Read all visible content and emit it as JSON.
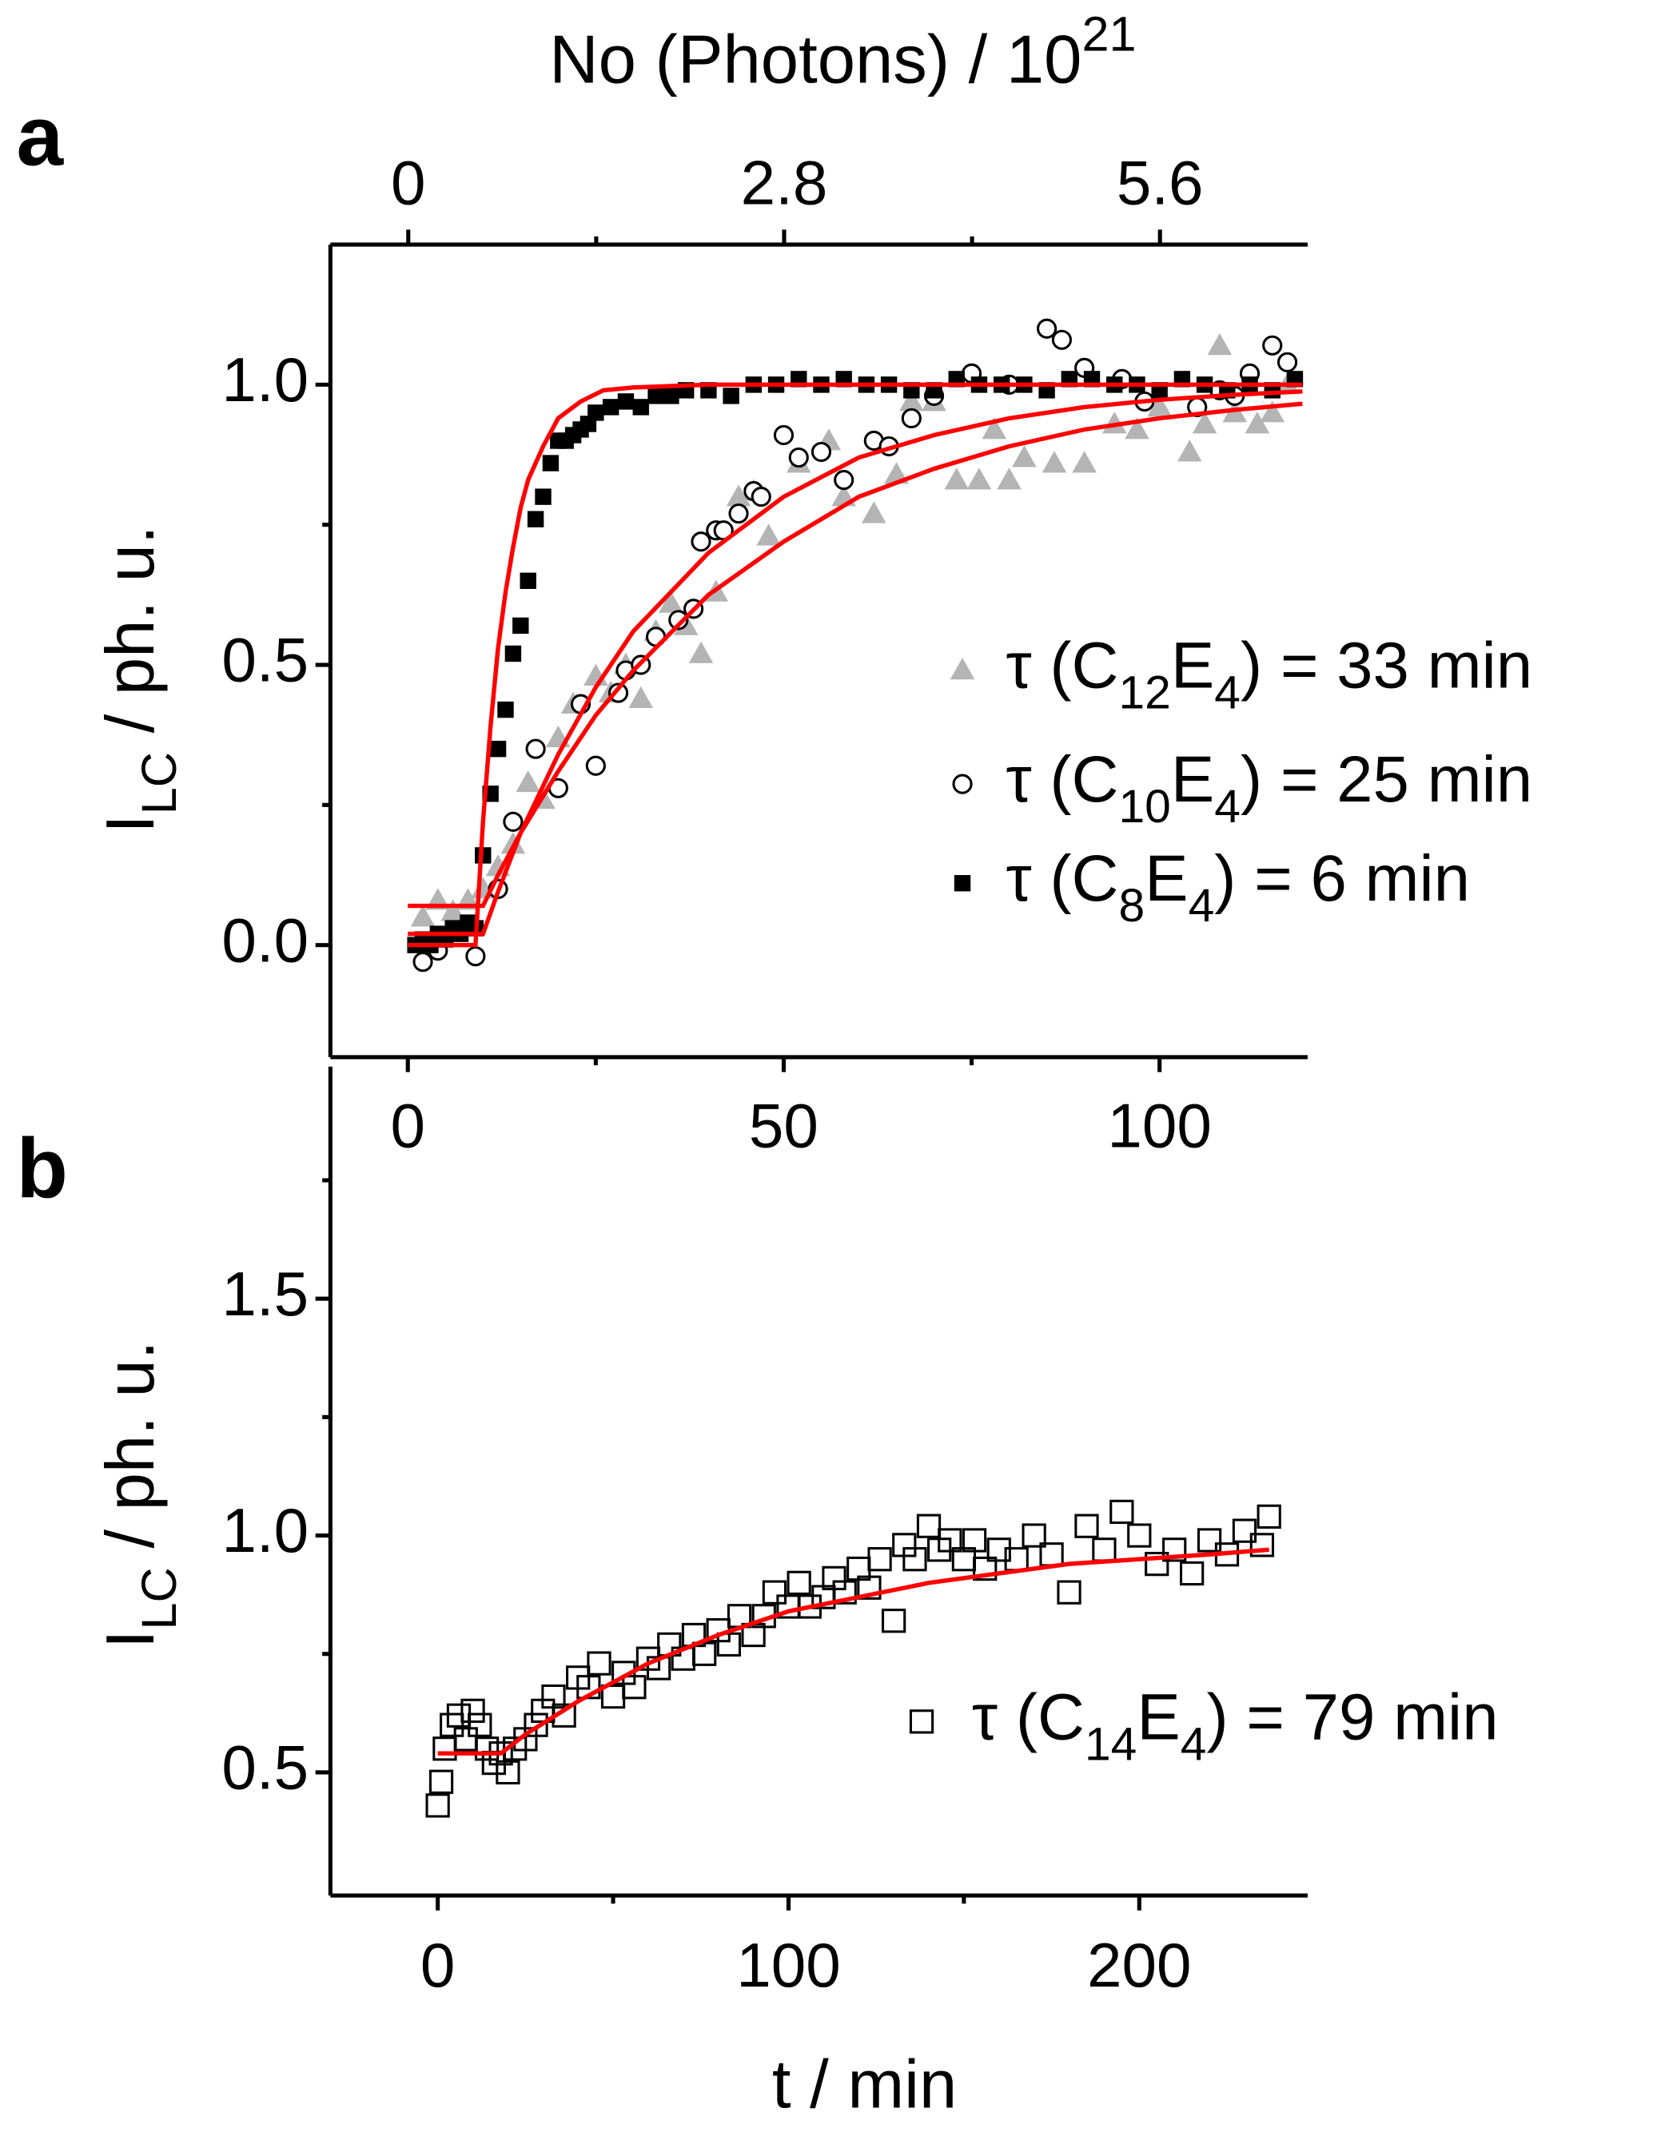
{
  "chart_data": [
    {
      "type": "scatter",
      "panel": "a",
      "ylabel": "ILC / ph. u.",
      "x2label": "No (Photons) / 1021",
      "xlim": [
        -10.3,
        119.7
      ],
      "xticks": [
        0,
        50,
        100
      ],
      "minor_xticks": [
        25,
        75
      ],
      "x2lim": [
        -0.58,
        6.7
      ],
      "x2ticks": [
        0,
        2.8,
        5.6
      ],
      "minor_x2ticks": [
        1.4,
        4.2
      ],
      "ylim": [
        -0.2,
        1.25
      ],
      "yticks": [
        {
          "value": 0,
          "label": "0.0"
        },
        {
          "value": 0.5,
          "label": "0.5"
        },
        {
          "value": 1,
          "label": "1.0"
        }
      ],
      "minor_yticks": [
        0.25,
        0.75
      ],
      "series": [
        {
          "name": "τ (C12E4) = 33 min",
          "color": "#b4b4b4",
          "marker": "triangle",
          "x": [
            2,
            4,
            6,
            8,
            10,
            12,
            14,
            16,
            18,
            20,
            22,
            25,
            27,
            29,
            31,
            33,
            35,
            37,
            39,
            41,
            44,
            46,
            48,
            52,
            56,
            58,
            62,
            65,
            67,
            70,
            73,
            76,
            78,
            80,
            82,
            86,
            90,
            94,
            97,
            100,
            104,
            106,
            108,
            110,
            113,
            115,
            117
          ],
          "values": [
            0.05,
            0.08,
            0.06,
            0.08,
            0.1,
            0.14,
            0.18,
            0.29,
            0.26,
            0.37,
            0.43,
            0.48,
            0.45,
            0.5,
            0.44,
            0.56,
            0.61,
            0.57,
            0.52,
            0.63,
            0.8,
            0.81,
            0.73,
            0.86,
            0.9,
            0.8,
            0.77,
            0.84,
            0.97,
            0.97,
            0.83,
            0.83,
            0.92,
            0.83,
            0.87,
            0.86,
            0.86,
            0.93,
            0.92,
            0.96,
            0.88,
            0.93,
            1.07,
            0.95,
            0.93,
            0.95,
            1.0
          ]
        },
        {
          "name": "τ (C10E4) = 25 min",
          "color": "#000000",
          "marker": "circle-open",
          "x": [
            2,
            4,
            9,
            12,
            14,
            17,
            20,
            23,
            25,
            28,
            29,
            31,
            33,
            36,
            38,
            39,
            41,
            42,
            44,
            46,
            47,
            50,
            52,
            55,
            58,
            62,
            64,
            67,
            70,
            75,
            80,
            85,
            87,
            90,
            95,
            98,
            105,
            108,
            110,
            112,
            115,
            117
          ],
          "values": [
            -0.03,
            -0.01,
            -0.02,
            0.1,
            0.22,
            0.35,
            0.28,
            0.43,
            0.32,
            0.45,
            0.49,
            0.5,
            0.55,
            0.58,
            0.6,
            0.72,
            0.74,
            0.74,
            0.77,
            0.81,
            0.8,
            0.91,
            0.87,
            0.88,
            0.83,
            0.9,
            0.89,
            0.94,
            0.98,
            1.02,
            1.0,
            1.1,
            1.08,
            1.03,
            1.01,
            0.97,
            0.96,
            0.99,
            0.98,
            1.02,
            1.07,
            1.04
          ]
        },
        {
          "name": "τ (C8E4) = 6 min",
          "color": "#000000",
          "marker": "square",
          "x": [
            1,
            2,
            3,
            4,
            5,
            6,
            7,
            8,
            9,
            10,
            11,
            12,
            13,
            14,
            15,
            16,
            17,
            18,
            19,
            20,
            21,
            22,
            23,
            24,
            25,
            27,
            29,
            31,
            33,
            35,
            37,
            40,
            43,
            46,
            49,
            52,
            55,
            58,
            61,
            64,
            67,
            70,
            73,
            76,
            79,
            82,
            85,
            88,
            91,
            94,
            97,
            100,
            103,
            106,
            109,
            112,
            115,
            118
          ],
          "values": [
            0.0,
            0.01,
            0.0,
            0.02,
            0.01,
            0.03,
            0.02,
            0.04,
            0.03,
            0.16,
            0.27,
            0.35,
            0.42,
            0.52,
            0.57,
            0.65,
            0.76,
            0.8,
            0.86,
            0.9,
            0.9,
            0.91,
            0.92,
            0.93,
            0.95,
            0.96,
            0.97,
            0.96,
            0.98,
            0.98,
            0.99,
            0.99,
            0.98,
            1.0,
            1.0,
            1.01,
            1.0,
            1.01,
            1.0,
            1.0,
            0.99,
            0.99,
            1.01,
            1.0,
            1.0,
            1.0,
            0.99,
            1.01,
            1.01,
            1.0,
            1.0,
            0.99,
            1.01,
            1.0,
            0.99,
            1.0,
            0.99,
            1.01
          ]
        }
      ],
      "fits": [
        {
          "color": "#ff0000",
          "x": [
            0,
            5,
            10,
            12,
            15,
            20,
            25,
            30,
            40,
            50,
            60,
            70,
            80,
            90,
            100,
            110,
            119
          ],
          "values": [
            0.07,
            0.07,
            0.07,
            0.125,
            0.2,
            0.31,
            0.41,
            0.49,
            0.625,
            0.72,
            0.8,
            0.85,
            0.89,
            0.92,
            0.94,
            0.955,
            0.966
          ]
        },
        {
          "color": "#ff0000",
          "x": [
            0,
            5,
            10,
            12,
            15,
            20,
            25,
            30,
            40,
            50,
            60,
            70,
            80,
            90,
            100,
            110,
            119
          ],
          "values": [
            0.02,
            0.02,
            0.02,
            0.095,
            0.2,
            0.34,
            0.46,
            0.56,
            0.7,
            0.8,
            0.87,
            0.91,
            0.94,
            0.96,
            0.973,
            0.982,
            0.988
          ]
        },
        {
          "color": "#ff0000",
          "x": [
            0,
            5,
            9,
            10,
            11,
            12,
            13,
            14,
            15,
            16,
            18,
            20,
            23,
            26,
            30,
            40,
            60,
            80,
            100,
            119
          ],
          "values": [
            0,
            0,
            0,
            0.22,
            0.39,
            0.53,
            0.63,
            0.71,
            0.78,
            0.83,
            0.89,
            0.94,
            0.97,
            0.99,
            0.995,
            1,
            1,
            1,
            1,
            1
          ]
        }
      ]
    },
    {
      "type": "scatter",
      "panel": "b",
      "ylabel": "ILC / ph. u.",
      "xlabel": "t / min",
      "xlim": [
        -30.6,
        248
      ],
      "xticks": [
        0,
        100,
        200
      ],
      "minor_xticks": [
        50,
        150
      ],
      "ylim": [
        0.24,
        2.01
      ],
      "yticks": [
        0.5,
        {
          "value": 1,
          "label": "1.0"
        },
        1.5
      ],
      "minor_yticks": [
        0.75,
        1.25,
        1.75
      ],
      "series": [
        {
          "name": "τ (C14E4) = 79 min",
          "color": "#000000",
          "marker": "square-open",
          "x": [
            0,
            1,
            2,
            4,
            6,
            8,
            10,
            12,
            14,
            16,
            18,
            20,
            22,
            25,
            28,
            30,
            33,
            36,
            40,
            43,
            46,
            50,
            53,
            56,
            60,
            63,
            66,
            70,
            73,
            76,
            80,
            83,
            86,
            90,
            93,
            96,
            100,
            103,
            106,
            110,
            113,
            116,
            120,
            123,
            126,
            130,
            133,
            136,
            140,
            143,
            146,
            150,
            153,
            156,
            160,
            165,
            170,
            175,
            180,
            185,
            190,
            195,
            200,
            205,
            210,
            215,
            220,
            225,
            230,
            235,
            237
          ],
          "values": [
            0.43,
            0.48,
            0.55,
            0.6,
            0.62,
            0.57,
            0.63,
            0.6,
            0.55,
            0.52,
            0.54,
            0.5,
            0.55,
            0.57,
            0.6,
            0.63,
            0.66,
            0.62,
            0.7,
            0.68,
            0.73,
            0.66,
            0.71,
            0.68,
            0.74,
            0.72,
            0.77,
            0.74,
            0.79,
            0.75,
            0.8,
            0.77,
            0.83,
            0.79,
            0.83,
            0.88,
            0.85,
            0.9,
            0.85,
            0.87,
            0.91,
            0.88,
            0.93,
            0.89,
            0.95,
            0.82,
            0.98,
            0.95,
            1.02,
            0.97,
            0.99,
            0.95,
            0.99,
            0.93,
            0.97,
            0.95,
            1.0,
            0.96,
            0.88,
            1.02,
            0.97,
            1.05,
            1.0,
            0.94,
            0.97,
            0.92,
            0.99,
            0.96,
            1.01,
            0.98,
            1.04
          ]
        }
      ],
      "fits": [
        {
          "color": "#ff0000",
          "x": [
            0,
            10,
            18,
            25,
            40,
            60,
            80,
            100,
            120,
            140,
            160,
            180,
            200,
            220,
            237
          ],
          "values": [
            0.54,
            0.54,
            0.54,
            0.58,
            0.65,
            0.73,
            0.79,
            0.84,
            0.87,
            0.9,
            0.92,
            0.94,
            0.95,
            0.96,
            0.97
          ]
        }
      ]
    }
  ]
}
